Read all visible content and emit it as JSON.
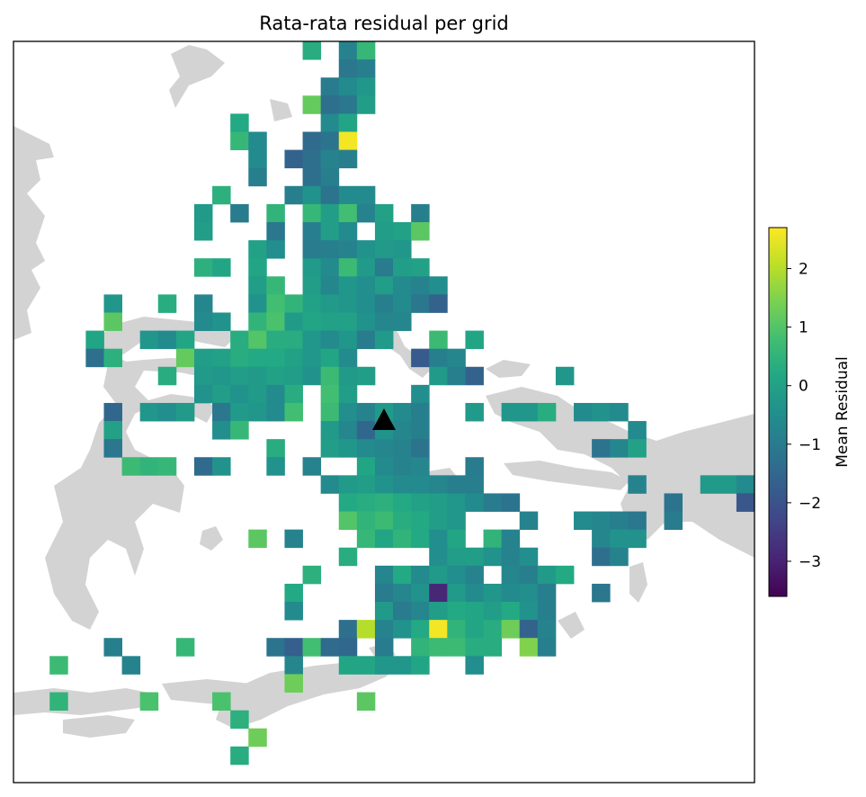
{
  "chart_data": {
    "type": "heatmap",
    "title": "Rata-rata residual per grid",
    "colorbar": {
      "label": "Mean Residual",
      "range": [
        -3.6,
        2.7
      ],
      "ticks": [
        2,
        1,
        0,
        -1,
        -2,
        -3
      ],
      "tick_labels": [
        "2",
        "1",
        "0",
        "−1",
        "−2",
        "−3"
      ],
      "colormap": "viridis"
    },
    "marker": {
      "shape": "triangle",
      "color": "#000000",
      "col": 20,
      "row": 20.5
    },
    "grid": {
      "cols": 41,
      "rows": 41
    },
    "cells": [
      [
        16,
        0,
        0.3
      ],
      [
        18,
        0,
        -0.8
      ],
      [
        19,
        0,
        0.6
      ],
      [
        18,
        1,
        -1.1
      ],
      [
        19,
        1,
        -0.9
      ],
      [
        17,
        2,
        -1.0
      ],
      [
        18,
        2,
        -0.6
      ],
      [
        19,
        2,
        -0.3
      ],
      [
        16,
        3,
        1.2
      ],
      [
        17,
        3,
        -1.3
      ],
      [
        18,
        3,
        -1.1
      ],
      [
        19,
        3,
        -0.1
      ],
      [
        12,
        4,
        0.2
      ],
      [
        17,
        4,
        -0.6
      ],
      [
        18,
        4,
        0.1
      ],
      [
        12,
        5,
        0.6
      ],
      [
        13,
        5,
        -0.6
      ],
      [
        16,
        5,
        -1.4
      ],
      [
        17,
        5,
        -1.2
      ],
      [
        18,
        5,
        2.6
      ],
      [
        13,
        6,
        -0.6
      ],
      [
        15,
        6,
        -1.6
      ],
      [
        16,
        6,
        -1.3
      ],
      [
        17,
        6,
        -0.8
      ],
      [
        18,
        6,
        -0.9
      ],
      [
        13,
        7,
        -0.9
      ],
      [
        16,
        7,
        -1.3
      ],
      [
        17,
        7,
        -0.9
      ],
      [
        11,
        8,
        0.4
      ],
      [
        15,
        8,
        -0.9
      ],
      [
        16,
        8,
        -0.4
      ],
      [
        17,
        8,
        -1.2
      ],
      [
        18,
        8,
        -0.6
      ],
      [
        19,
        8,
        -0.6
      ],
      [
        10,
        9,
        -0.2
      ],
      [
        12,
        9,
        -1.0
      ],
      [
        14,
        9,
        0.5
      ],
      [
        16,
        9,
        0.6
      ],
      [
        17,
        9,
        -0.1
      ],
      [
        18,
        9,
        0.8
      ],
      [
        19,
        9,
        -0.8
      ],
      [
        20,
        9,
        0.0
      ],
      [
        22,
        9,
        -0.9
      ],
      [
        10,
        10,
        -0.1
      ],
      [
        14,
        10,
        -1.1
      ],
      [
        16,
        10,
        -0.9
      ],
      [
        17,
        10,
        -0.1
      ],
      [
        18,
        10,
        -0.6
      ],
      [
        20,
        10,
        -0.1
      ],
      [
        21,
        10,
        0.0
      ],
      [
        22,
        10,
        1.1
      ],
      [
        13,
        11,
        0.0
      ],
      [
        14,
        11,
        -0.5
      ],
      [
        16,
        11,
        -1.0
      ],
      [
        17,
        11,
        -0.9
      ],
      [
        18,
        11,
        -0.8
      ],
      [
        19,
        11,
        -0.4
      ],
      [
        20,
        11,
        -0.2
      ],
      [
        21,
        11,
        -0.3
      ],
      [
        10,
        12,
        0.4
      ],
      [
        11,
        12,
        0.1
      ],
      [
        13,
        12,
        0.1
      ],
      [
        16,
        12,
        -0.2
      ],
      [
        17,
        12,
        -0.6
      ],
      [
        18,
        12,
        0.7
      ],
      [
        19,
        12,
        -0.2
      ],
      [
        20,
        12,
        -1.0
      ],
      [
        21,
        12,
        -0.1
      ],
      [
        22,
        12,
        0.0
      ],
      [
        13,
        13,
        -0.1
      ],
      [
        14,
        13,
        0.6
      ],
      [
        16,
        13,
        -0.1
      ],
      [
        17,
        13,
        -0.7
      ],
      [
        18,
        13,
        -0.3
      ],
      [
        19,
        13,
        -0.5
      ],
      [
        20,
        13,
        -0.1
      ],
      [
        21,
        13,
        -0.6
      ],
      [
        22,
        13,
        -0.8
      ],
      [
        23,
        13,
        -0.5
      ],
      [
        5,
        14,
        -0.3
      ],
      [
        8,
        14,
        0.3
      ],
      [
        10,
        14,
        -0.7
      ],
      [
        13,
        14,
        -0.4
      ],
      [
        14,
        14,
        0.8
      ],
      [
        15,
        14,
        0.5
      ],
      [
        16,
        14,
        0.0
      ],
      [
        17,
        14,
        -0.2
      ],
      [
        18,
        14,
        -0.3
      ],
      [
        19,
        14,
        -0.5
      ],
      [
        20,
        14,
        -0.9
      ],
      [
        21,
        14,
        -0.6
      ],
      [
        22,
        14,
        -1.1
      ],
      [
        23,
        14,
        -1.6
      ],
      [
        5,
        15,
        1.1
      ],
      [
        10,
        15,
        -0.6
      ],
      [
        11,
        15,
        -0.4
      ],
      [
        13,
        15,
        0.5
      ],
      [
        14,
        15,
        0.9
      ],
      [
        15,
        15,
        -0.2
      ],
      [
        16,
        15,
        0.1
      ],
      [
        17,
        15,
        0.0
      ],
      [
        18,
        15,
        0.0
      ],
      [
        19,
        15,
        -0.4
      ],
      [
        20,
        15,
        -0.7
      ],
      [
        21,
        15,
        -0.7
      ],
      [
        4,
        16,
        0.1
      ],
      [
        7,
        16,
        -0.3
      ],
      [
        8,
        16,
        -0.6
      ],
      [
        9,
        16,
        0.1
      ],
      [
        12,
        16,
        0.3
      ],
      [
        13,
        16,
        1.0
      ],
      [
        14,
        16,
        0.3
      ],
      [
        15,
        16,
        0.3
      ],
      [
        16,
        16,
        -0.3
      ],
      [
        17,
        16,
        -0.6
      ],
      [
        18,
        16,
        -0.3
      ],
      [
        19,
        16,
        -1.0
      ],
      [
        20,
        16,
        -0.2
      ],
      [
        23,
        16,
        0.7
      ],
      [
        25,
        16,
        0.1
      ],
      [
        4,
        17,
        -1.3
      ],
      [
        5,
        17,
        0.4
      ],
      [
        9,
        17,
        1.2
      ],
      [
        10,
        17,
        -0.1
      ],
      [
        11,
        17,
        0.0
      ],
      [
        12,
        17,
        0.3
      ],
      [
        13,
        17,
        0.2
      ],
      [
        14,
        17,
        0.2
      ],
      [
        15,
        17,
        0.0
      ],
      [
        16,
        17,
        -0.3
      ],
      [
        17,
        17,
        0.1
      ],
      [
        18,
        17,
        -0.6
      ],
      [
        22,
        17,
        -1.8
      ],
      [
        23,
        17,
        -0.9
      ],
      [
        24,
        17,
        -0.7
      ],
      [
        8,
        18,
        0.3
      ],
      [
        10,
        18,
        -0.2
      ],
      [
        11,
        18,
        -0.3
      ],
      [
        12,
        18,
        -0.1
      ],
      [
        13,
        18,
        -0.2
      ],
      [
        14,
        18,
        0.0
      ],
      [
        15,
        18,
        -0.1
      ],
      [
        16,
        18,
        -0.4
      ],
      [
        17,
        18,
        0.7
      ],
      [
        18,
        18,
        -0.2
      ],
      [
        19,
        18,
        -0.1
      ],
      [
        23,
        18,
        -0.2
      ],
      [
        24,
        18,
        -0.9
      ],
      [
        25,
        18,
        -1.6
      ],
      [
        30,
        18,
        -0.3
      ],
      [
        10,
        19,
        -0.4
      ],
      [
        11,
        19,
        -0.1
      ],
      [
        12,
        19,
        -0.4
      ],
      [
        13,
        19,
        -0.2
      ],
      [
        14,
        19,
        -0.6
      ],
      [
        15,
        19,
        0.3
      ],
      [
        17,
        19,
        0.8
      ],
      [
        18,
        19,
        -0.1
      ],
      [
        22,
        19,
        -0.5
      ],
      [
        5,
        20,
        -1.5
      ],
      [
        7,
        20,
        -0.3
      ],
      [
        8,
        20,
        -0.5
      ],
      [
        9,
        20,
        -0.2
      ],
      [
        11,
        20,
        -1.1
      ],
      [
        12,
        20,
        -0.2
      ],
      [
        13,
        20,
        -0.3
      ],
      [
        14,
        20,
        -0.6
      ],
      [
        15,
        20,
        0.8
      ],
      [
        17,
        20,
        0.7
      ],
      [
        18,
        20,
        -0.5
      ],
      [
        19,
        20,
        -0.8
      ],
      [
        20,
        20,
        -0.2
      ],
      [
        21,
        20,
        -0.6
      ],
      [
        22,
        20,
        -0.9
      ],
      [
        25,
        20,
        -0.2
      ],
      [
        27,
        20,
        -0.3
      ],
      [
        28,
        20,
        -0.3
      ],
      [
        29,
        20,
        0.3
      ],
      [
        31,
        20,
        -0.6
      ],
      [
        32,
        20,
        -0.4
      ],
      [
        33,
        20,
        -0.6
      ],
      [
        5,
        21,
        0.0
      ],
      [
        11,
        21,
        -0.5
      ],
      [
        12,
        21,
        0.6
      ],
      [
        17,
        21,
        -0.2
      ],
      [
        18,
        21,
        -0.7
      ],
      [
        19,
        21,
        -1.5
      ],
      [
        20,
        21,
        -0.4
      ],
      [
        21,
        21,
        -0.7
      ],
      [
        22,
        21,
        -0.9
      ],
      [
        34,
        21,
        -0.6
      ],
      [
        5,
        22,
        -1.1
      ],
      [
        14,
        22,
        0.3
      ],
      [
        17,
        22,
        -0.1
      ],
      [
        18,
        22,
        -0.3
      ],
      [
        19,
        22,
        -0.6
      ],
      [
        20,
        22,
        -0.7
      ],
      [
        21,
        22,
        -0.8
      ],
      [
        22,
        22,
        -1.2
      ],
      [
        32,
        22,
        -1.2
      ],
      [
        33,
        22,
        -0.7
      ],
      [
        34,
        22,
        0.0
      ],
      [
        6,
        23,
        0.7
      ],
      [
        7,
        23,
        0.5
      ],
      [
        8,
        23,
        0.6
      ],
      [
        10,
        23,
        -1.4
      ],
      [
        11,
        23,
        -0.4
      ],
      [
        14,
        23,
        -0.4
      ],
      [
        16,
        23,
        -0.8
      ],
      [
        19,
        23,
        0.1
      ],
      [
        20,
        23,
        -0.6
      ],
      [
        21,
        23,
        -0.8
      ],
      [
        22,
        23,
        -0.7
      ],
      [
        25,
        23,
        -1.0
      ],
      [
        17,
        24,
        -0.6
      ],
      [
        18,
        24,
        -0.2
      ],
      [
        19,
        24,
        -0.1
      ],
      [
        20,
        24,
        -0.4
      ],
      [
        21,
        24,
        -0.6
      ],
      [
        22,
        24,
        -0.6
      ],
      [
        23,
        24,
        -0.7
      ],
      [
        24,
        24,
        -0.9
      ],
      [
        25,
        24,
        -0.9
      ],
      [
        34,
        24,
        -0.8
      ],
      [
        38,
        24,
        -0.2
      ],
      [
        39,
        24,
        -0.2
      ],
      [
        40,
        24,
        -0.6
      ],
      [
        18,
        25,
        0.2
      ],
      [
        19,
        25,
        0.3
      ],
      [
        20,
        25,
        0.4
      ],
      [
        21,
        25,
        0.2
      ],
      [
        22,
        25,
        0.0
      ],
      [
        23,
        25,
        -0.1
      ],
      [
        24,
        25,
        -0.3
      ],
      [
        25,
        25,
        -0.6
      ],
      [
        26,
        25,
        -1.0
      ],
      [
        27,
        25,
        -1.2
      ],
      [
        36,
        25,
        -1.2
      ],
      [
        40,
        25,
        -1.9
      ],
      [
        18,
        26,
        1.0
      ],
      [
        19,
        26,
        0.5
      ],
      [
        20,
        26,
        0.7
      ],
      [
        21,
        26,
        0.3
      ],
      [
        22,
        26,
        0.2
      ],
      [
        23,
        26,
        -0.1
      ],
      [
        24,
        26,
        -0.3
      ],
      [
        28,
        26,
        -0.8
      ],
      [
        31,
        26,
        -0.6
      ],
      [
        32,
        26,
        -0.7
      ],
      [
        33,
        26,
        -0.9
      ],
      [
        34,
        26,
        -1.1
      ],
      [
        36,
        26,
        -1.0
      ],
      [
        13,
        27,
        1.1
      ],
      [
        15,
        27,
        -0.8
      ],
      [
        19,
        27,
        0.6
      ],
      [
        20,
        27,
        0.1
      ],
      [
        21,
        27,
        0.5
      ],
      [
        22,
        27,
        0.2
      ],
      [
        23,
        27,
        -0.5
      ],
      [
        24,
        27,
        0.1
      ],
      [
        26,
        27,
        0.5
      ],
      [
        27,
        27,
        -0.8
      ],
      [
        32,
        27,
        -0.7
      ],
      [
        33,
        27,
        -0.4
      ],
      [
        34,
        27,
        -0.4
      ],
      [
        18,
        28,
        0.3
      ],
      [
        23,
        28,
        -0.5
      ],
      [
        24,
        28,
        -0.1
      ],
      [
        25,
        28,
        -0.1
      ],
      [
        26,
        28,
        -0.4
      ],
      [
        27,
        28,
        -0.8
      ],
      [
        28,
        28,
        -0.5
      ],
      [
        32,
        28,
        -1.3
      ],
      [
        33,
        28,
        -0.8
      ],
      [
        16,
        29,
        0.4
      ],
      [
        20,
        29,
        -0.7
      ],
      [
        21,
        29,
        0.2
      ],
      [
        22,
        29,
        -0.6
      ],
      [
        23,
        29,
        -0.2
      ],
      [
        24,
        29,
        -0.5
      ],
      [
        25,
        29,
        -0.8
      ],
      [
        27,
        29,
        -0.7
      ],
      [
        28,
        29,
        -0.9
      ],
      [
        29,
        29,
        -0.2
      ],
      [
        30,
        29,
        0.2
      ],
      [
        15,
        30,
        0.2
      ],
      [
        20,
        30,
        -1.0
      ],
      [
        21,
        30,
        -0.7
      ],
      [
        22,
        30,
        -0.4
      ],
      [
        23,
        30,
        -2.9
      ],
      [
        24,
        30,
        -0.2
      ],
      [
        25,
        30,
        -0.6
      ],
      [
        26,
        30,
        -0.3
      ],
      [
        27,
        30,
        -0.6
      ],
      [
        28,
        30,
        -0.5
      ],
      [
        29,
        30,
        -0.9
      ],
      [
        32,
        30,
        -1.1
      ],
      [
        15,
        31,
        -0.6
      ],
      [
        20,
        31,
        -0.2
      ],
      [
        21,
        31,
        -1.0
      ],
      [
        22,
        31,
        -0.7
      ],
      [
        23,
        31,
        -0.1
      ],
      [
        24,
        31,
        0.2
      ],
      [
        25,
        31,
        0.1
      ],
      [
        26,
        31,
        -0.1
      ],
      [
        27,
        31,
        0.2
      ],
      [
        28,
        31,
        -0.4
      ],
      [
        29,
        31,
        -0.9
      ],
      [
        18,
        32,
        -1.3
      ],
      [
        19,
        32,
        2.0
      ],
      [
        20,
        32,
        -0.8
      ],
      [
        21,
        32,
        -0.4
      ],
      [
        22,
        32,
        0.2
      ],
      [
        23,
        32,
        2.6
      ],
      [
        24,
        32,
        0.5
      ],
      [
        25,
        32,
        0.1
      ],
      [
        26,
        32,
        0.3
      ],
      [
        27,
        32,
        1.3
      ],
      [
        28,
        32,
        -1.6
      ],
      [
        29,
        32,
        -0.8
      ],
      [
        5,
        33,
        -0.9
      ],
      [
        9,
        33,
        0.6
      ],
      [
        14,
        33,
        -1.2
      ],
      [
        15,
        33,
        -1.7
      ],
      [
        16,
        33,
        0.8
      ],
      [
        17,
        33,
        -1.4
      ],
      [
        18,
        33,
        -1.5
      ],
      [
        20,
        33,
        -1.0
      ],
      [
        22,
        33,
        0.5
      ],
      [
        23,
        33,
        0.7
      ],
      [
        24,
        33,
        0.7
      ],
      [
        25,
        33,
        0.3
      ],
      [
        26,
        33,
        0.3
      ],
      [
        28,
        33,
        1.5
      ],
      [
        29,
        33,
        -0.9
      ],
      [
        2,
        34,
        0.7
      ],
      [
        6,
        34,
        -0.8
      ],
      [
        15,
        34,
        -0.7
      ],
      [
        18,
        34,
        0.1
      ],
      [
        19,
        34,
        0.1
      ],
      [
        20,
        34,
        -0.3
      ],
      [
        21,
        34,
        -0.3
      ],
      [
        22,
        34,
        0.1
      ],
      [
        25,
        34,
        -0.5
      ],
      [
        15,
        35,
        1.3
      ],
      [
        2,
        36,
        0.5
      ],
      [
        7,
        36,
        0.9
      ],
      [
        11,
        36,
        0.9
      ],
      [
        19,
        36,
        1.1
      ],
      [
        12,
        37,
        0.4
      ],
      [
        13,
        38,
        1.3
      ],
      [
        12,
        39,
        0.3
      ]
    ]
  }
}
